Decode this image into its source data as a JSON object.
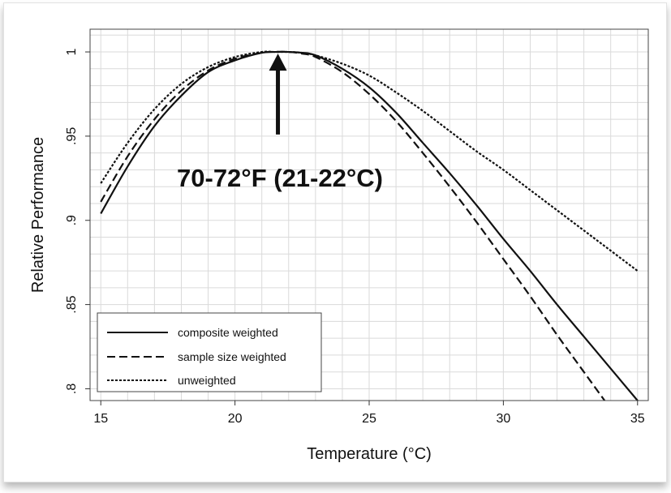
{
  "chart_data": {
    "type": "line",
    "xlabel": "Temperature (°C)",
    "ylabel": "Relative Performance",
    "xlim": [
      14.6,
      35.4
    ],
    "ylim": [
      0.793,
      1.0135
    ],
    "x_ticks": [
      15,
      20,
      25,
      30,
      35
    ],
    "y_ticks": [
      0.8,
      0.85,
      0.9,
      0.95,
      1
    ],
    "y_tick_labels": [
      ".8",
      ".85",
      ".9",
      ".95",
      "1"
    ],
    "grid": true,
    "legend_placement": "bottom-left",
    "series": [
      {
        "name": "composite weighted",
        "style": "solid",
        "x": [
          15,
          16,
          17,
          18,
          19,
          20,
          21,
          21.5,
          22,
          22.5,
          23,
          24,
          25,
          26,
          27,
          28,
          29,
          30,
          31,
          32,
          33,
          34,
          35
        ],
        "y": [
          0.904,
          0.932,
          0.956,
          0.974,
          0.988,
          0.995,
          0.9995,
          1.0,
          1.0,
          0.9995,
          0.998,
          0.99,
          0.979,
          0.964,
          0.946,
          0.928,
          0.909,
          0.889,
          0.87,
          0.85,
          0.831,
          0.812,
          0.793
        ]
      },
      {
        "name": "sample size weighted",
        "style": "dashed",
        "x": [
          15,
          16,
          17,
          18,
          19,
          20,
          21,
          21.5,
          22,
          22.5,
          23,
          24,
          25,
          26,
          27,
          28,
          29,
          30,
          31,
          32,
          33,
          34,
          35
        ],
        "y": [
          0.911,
          0.938,
          0.96,
          0.977,
          0.989,
          0.996,
          0.9995,
          1.0,
          1.0,
          0.999,
          0.997,
          0.988,
          0.975,
          0.959,
          0.94,
          0.92,
          0.899,
          0.877,
          0.855,
          0.832,
          0.81,
          0.788,
          0.766
        ]
      },
      {
        "name": "unweighted",
        "style": "dotted",
        "x": [
          15,
          16,
          17,
          18,
          19,
          20,
          21,
          21.5,
          22,
          22.5,
          23,
          24,
          25,
          26,
          27,
          28,
          29,
          30,
          31,
          32,
          33,
          34,
          35
        ],
        "y": [
          0.922,
          0.946,
          0.966,
          0.981,
          0.991,
          0.997,
          1.0,
          1.0,
          1.0,
          0.9995,
          0.998,
          0.993,
          0.986,
          0.976,
          0.965,
          0.953,
          0.941,
          0.93,
          0.918,
          0.906,
          0.894,
          0.882,
          0.87
        ]
      }
    ],
    "annotation": {
      "text": "70-72°F (21-22°C)",
      "arrow_x": 21.6,
      "arrow_y_from": 0.951,
      "arrow_y_to": 0.9995
    }
  }
}
